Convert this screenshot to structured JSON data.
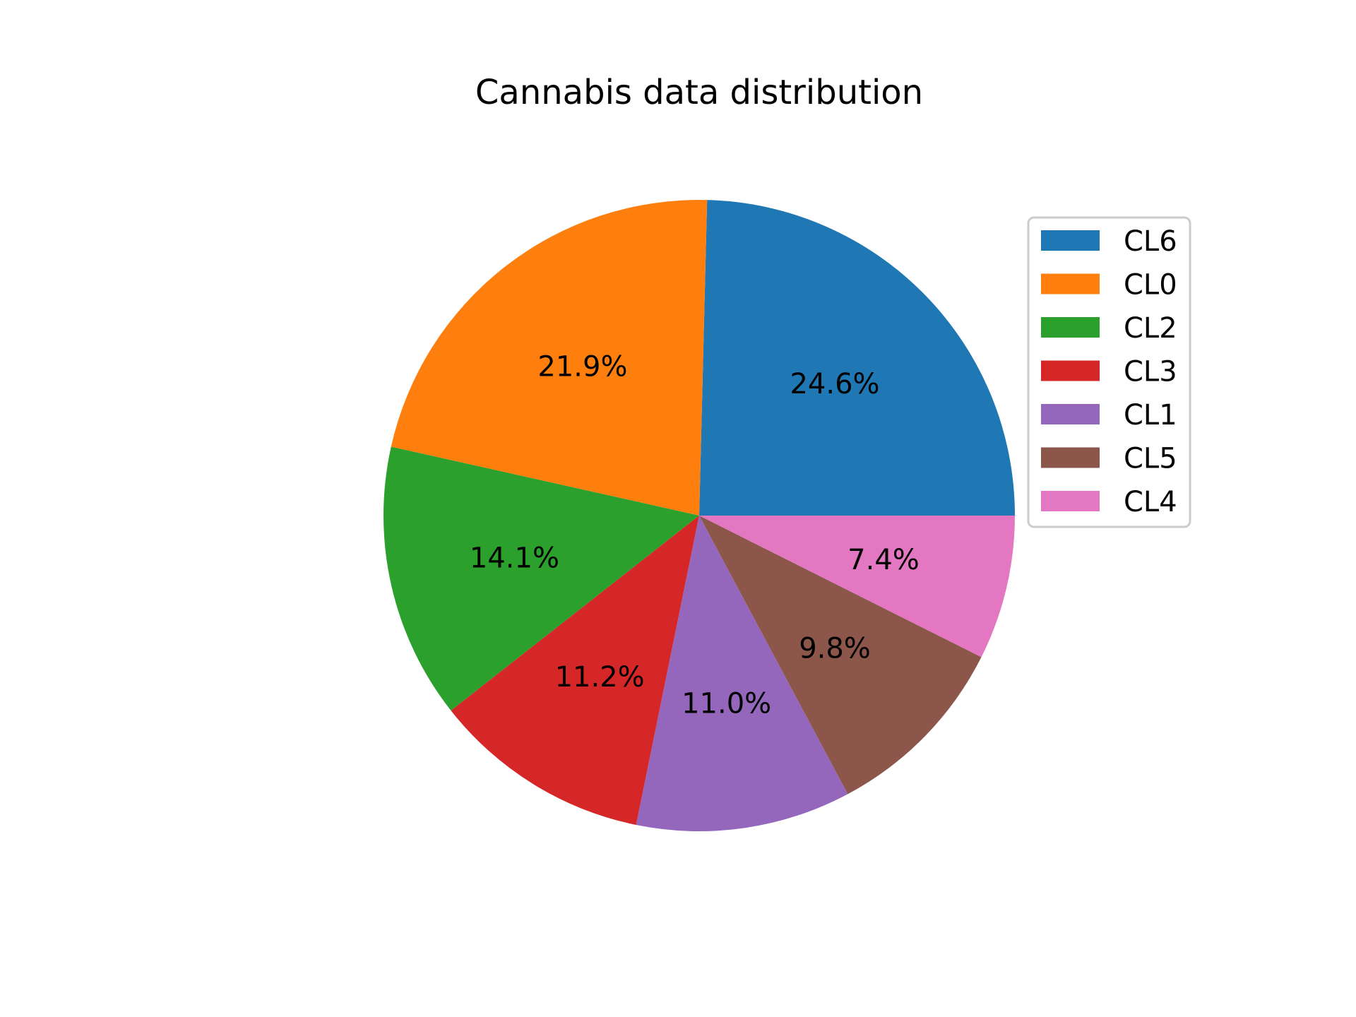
{
  "chart_data": {
    "type": "pie",
    "title": "Cannabis data distribution",
    "start_angle_deg": 0,
    "direction": "counterclockwise",
    "legend_position": "upper-right",
    "slices": [
      {
        "label": "CL6",
        "value": 24.6,
        "display": "24.6%",
        "color": "#1f77b4"
      },
      {
        "label": "CL0",
        "value": 21.9,
        "display": "21.9%",
        "color": "#ff7f0e"
      },
      {
        "label": "CL2",
        "value": 14.1,
        "display": "14.1%",
        "color": "#2ca02c"
      },
      {
        "label": "CL3",
        "value": 11.2,
        "display": "11.2%",
        "color": "#d62728"
      },
      {
        "label": "CL1",
        "value": 11.0,
        "display": "11.0%",
        "color": "#9467bd"
      },
      {
        "label": "CL5",
        "value": 9.8,
        "display": "9.8%",
        "color": "#8c564b"
      },
      {
        "label": "CL4",
        "value": 7.4,
        "display": "7.4%",
        "color": "#e377c2"
      }
    ]
  }
}
